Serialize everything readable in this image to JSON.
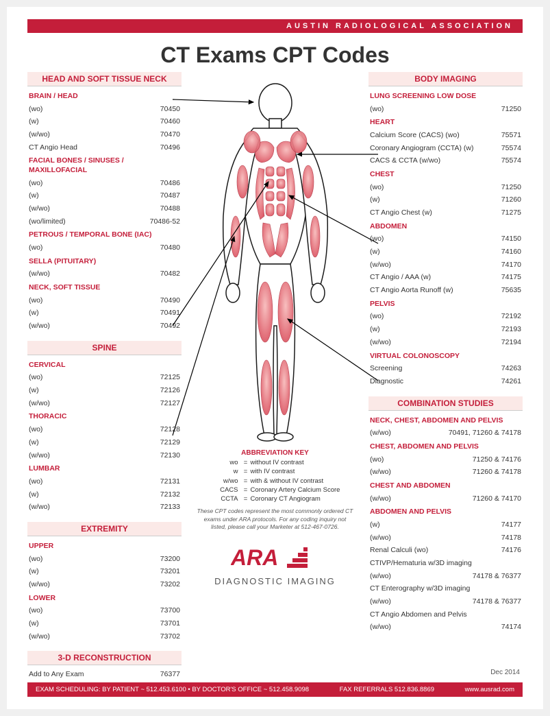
{
  "header": {
    "org": "AUSTIN RADIOLOGICAL ASSOCIATION",
    "title": "CT Exams CPT Codes"
  },
  "left_sections": [
    {
      "title": "HEAD AND SOFT TISSUE NECK",
      "groups": [
        {
          "sub": "BRAIN / HEAD",
          "rows": [
            [
              "(wo)",
              "70450"
            ],
            [
              "(w)",
              "70460"
            ],
            [
              "(w/wo)",
              "70470"
            ],
            [
              "CT Angio Head",
              "70496"
            ]
          ]
        },
        {
          "sub": "FACIAL BONES / SINUSES / MAXILLOFACIAL",
          "rows": [
            [
              "(wo)",
              "70486"
            ],
            [
              "(w)",
              "70487"
            ],
            [
              "(w/wo)",
              "70488"
            ],
            [
              "(wo/limited)",
              "70486-52"
            ]
          ]
        },
        {
          "sub": "PETROUS / TEMPORAL BONE (IAC)",
          "rows": [
            [
              "(wo)",
              "70480"
            ]
          ]
        },
        {
          "sub": "SELLA (PITUITARY)",
          "rows": [
            [
              "(w/wo)",
              "70482"
            ]
          ]
        },
        {
          "sub": "NECK, SOFT TISSUE",
          "rows": [
            [
              "(wo)",
              "70490"
            ],
            [
              "(w)",
              "70491"
            ],
            [
              "(w/wo)",
              "70492"
            ]
          ]
        }
      ]
    },
    {
      "title": "SPINE",
      "groups": [
        {
          "sub": "CERVICAL",
          "rows": [
            [
              "(wo)",
              "72125"
            ],
            [
              "(w)",
              "72126"
            ],
            [
              "(w/wo)",
              "72127"
            ]
          ]
        },
        {
          "sub": "THORACIC",
          "rows": [
            [
              "(wo)",
              "72128"
            ],
            [
              "(w)",
              "72129"
            ],
            [
              "(w/wo)",
              "72130"
            ]
          ]
        },
        {
          "sub": "LUMBAR",
          "rows": [
            [
              "(wo)",
              "72131"
            ],
            [
              "(w)",
              "72132"
            ],
            [
              "(w/wo)",
              "72133"
            ]
          ]
        }
      ]
    },
    {
      "title": "EXTREMITY",
      "groups": [
        {
          "sub": "UPPER",
          "rows": [
            [
              "(wo)",
              "73200"
            ],
            [
              "(w)",
              "73201"
            ],
            [
              "(w/wo)",
              "73202"
            ]
          ]
        },
        {
          "sub": "LOWER",
          "rows": [
            [
              "(wo)",
              "73700"
            ],
            [
              "(w)",
              "73701"
            ],
            [
              "(w/wo)",
              "73702"
            ]
          ]
        }
      ]
    },
    {
      "title": "3-D RECONSTRUCTION",
      "groups": [
        {
          "sub": null,
          "rows": [
            [
              "Add to Any Exam",
              "76377"
            ]
          ]
        }
      ]
    }
  ],
  "right_sections": [
    {
      "title": "BODY IMAGING",
      "groups": [
        {
          "sub": "LUNG SCREENING LOW DOSE",
          "rows": [
            [
              "(wo)",
              "71250"
            ]
          ]
        },
        {
          "sub": "HEART",
          "rows": [
            [
              "Calcium Score (CACS) (wo)",
              "75571"
            ],
            [
              "Coronary Angiogram (CCTA) (w)",
              "75574"
            ],
            [
              "CACS & CCTA (w/wo)",
              "75574"
            ]
          ]
        },
        {
          "sub": "CHEST",
          "rows": [
            [
              "(wo)",
              "71250"
            ],
            [
              "(w)",
              "71260"
            ],
            [
              "CT Angio Chest (w)",
              "71275"
            ]
          ]
        },
        {
          "sub": "ABDOMEN",
          "rows": [
            [
              "(wo)",
              "74150"
            ],
            [
              "(w)",
              "74160"
            ],
            [
              "(w/wo)",
              "74170"
            ],
            [
              "CT Angio / AAA (w)",
              "74175"
            ],
            [
              "CT Angio Aorta Runoff (w)",
              "75635"
            ]
          ]
        },
        {
          "sub": "PELVIS",
          "rows": [
            [
              "(wo)",
              "72192"
            ],
            [
              "(w)",
              "72193"
            ],
            [
              "(w/wo)",
              "72194"
            ]
          ]
        },
        {
          "sub": "VIRTUAL COLONOSCOPY",
          "rows": [
            [
              "Screening",
              "74263"
            ],
            [
              "Diagnostic",
              "74261"
            ]
          ]
        }
      ]
    },
    {
      "title": "COMBINATION STUDIES",
      "groups": [
        {
          "sub": "NECK, CHEST, ABDOMEN AND PELVIS",
          "rows": [
            [
              "(w/wo)",
              "70491, 71260 & 74178"
            ]
          ]
        },
        {
          "sub": "CHEST, ABDOMEN AND PELVIS",
          "rows": [
            [
              "(wo)",
              "71250 & 74176"
            ],
            [
              "(w/wo)",
              "71260 & 74178"
            ]
          ]
        },
        {
          "sub": "CHEST AND ABDOMEN",
          "rows": [
            [
              "(w/wo)",
              "71260 & 74170"
            ]
          ]
        },
        {
          "sub": "ABDOMEN AND PELVIS",
          "rows": [
            [
              "(w)",
              "74177"
            ],
            [
              "(w/wo)",
              "74178"
            ],
            [
              "Renal Calculi (wo)",
              "74176"
            ],
            [
              "CTIVP/Hematuria w/3D imaging",
              ""
            ],
            [
              "(w/wo)",
              "74178 & 76377"
            ],
            [
              "CT Enterography w/3D imaging",
              ""
            ],
            [
              "(w/wo)",
              "74178 & 76377"
            ],
            [
              "CT Angio Abdomen and Pelvis",
              ""
            ],
            [
              "(w/wo)",
              "74174"
            ]
          ]
        }
      ]
    }
  ],
  "abbreviations": {
    "title": "ABBREVIATION KEY",
    "rows": [
      [
        "wo",
        "without IV contrast"
      ],
      [
        "w",
        "with IV contrast"
      ],
      [
        "w/wo",
        "with & without IV contrast"
      ],
      [
        "CACS",
        "Coronary Artery Calcium Score"
      ],
      [
        "CCTA",
        "Coronary CT Angiogram"
      ]
    ]
  },
  "disclaimer": "These CPT codes represent the most commonly ordered CT exams under ARA protocols. For any coding inquiry not listed, please call your Marketer at 512-467-0726.",
  "logo": {
    "brand": "ARA",
    "tagline": "DIAGNOSTIC IMAGING"
  },
  "date": "Dec 2014",
  "footer": {
    "scheduling": "EXAM SCHEDULING:   BY PATIENT ~ 512.453.6100  •  BY DOCTOR'S OFFICE ~ 512.458.9098",
    "fax": "FAX REFERRALS 512.836.8869",
    "url": "www.ausrad.com"
  },
  "colors": {
    "accent": "#c41e3a",
    "section_bg": "#fbe9e7",
    "muscle_light": "#f8bcbc",
    "muscle_dark": "#d94b5a",
    "outline": "#1a1a1a"
  }
}
